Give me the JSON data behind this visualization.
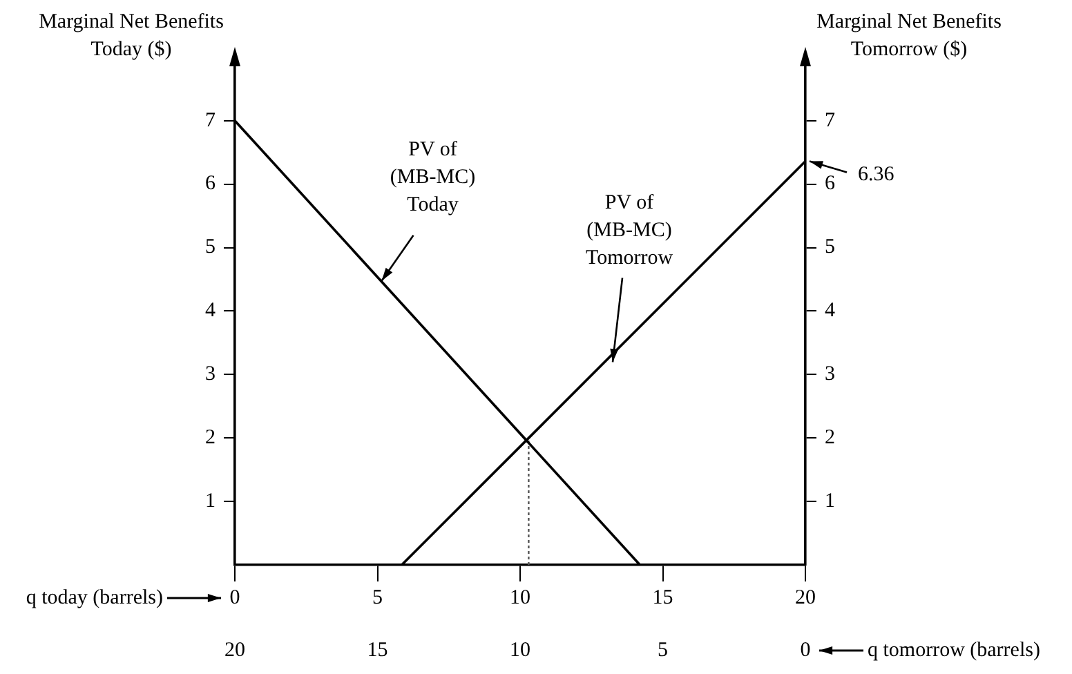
{
  "chart_data": {
    "type": "line",
    "ylabel": "Marginal Net Benefits\nToday ($)",
    "y2label": "Marginal Net Benefits\nTomorrow ($)",
    "xlabel": "q today (barrels)",
    "x2label": "q tomorrow (barrels)",
    "xlim": [
      0,
      20
    ],
    "xticks": [
      0,
      5,
      10,
      15,
      20
    ],
    "x2lim": [
      20,
      0
    ],
    "x2ticks": [
      20,
      15,
      10,
      5,
      0
    ],
    "ylim": [
      0,
      7.9
    ],
    "yticks": [
      1,
      2,
      3,
      4,
      5,
      6,
      7
    ],
    "y2lim": [
      0,
      7.9
    ],
    "y2ticks": [
      1,
      2,
      3,
      4,
      5,
      6,
      7
    ],
    "marker": "none",
    "series": [
      {
        "color": "#000000",
        "x": [
          0,
          14.2
        ],
        "values": [
          7,
          0
        ]
      },
      {
        "color": "#000000",
        "x": [
          5.85,
          20
        ],
        "values": [
          0,
          6.36
        ]
      },
      {
        "color": "#555555",
        "line_style": "dotted",
        "x": [
          10.3,
          10.3
        ],
        "values": [
          0,
          2
        ]
      }
    ],
    "annotations": [
      {
        "text": "PV of\n(MB-MC)\nToday",
        "x": 5,
        "y": 4.54
      },
      {
        "text": "PV of\n(MB-MC)\nTomorrow",
        "x": 13.1,
        "y": 3.26
      },
      {
        "text": "6.36",
        "x": 20,
        "y": 6.36
      }
    ]
  }
}
